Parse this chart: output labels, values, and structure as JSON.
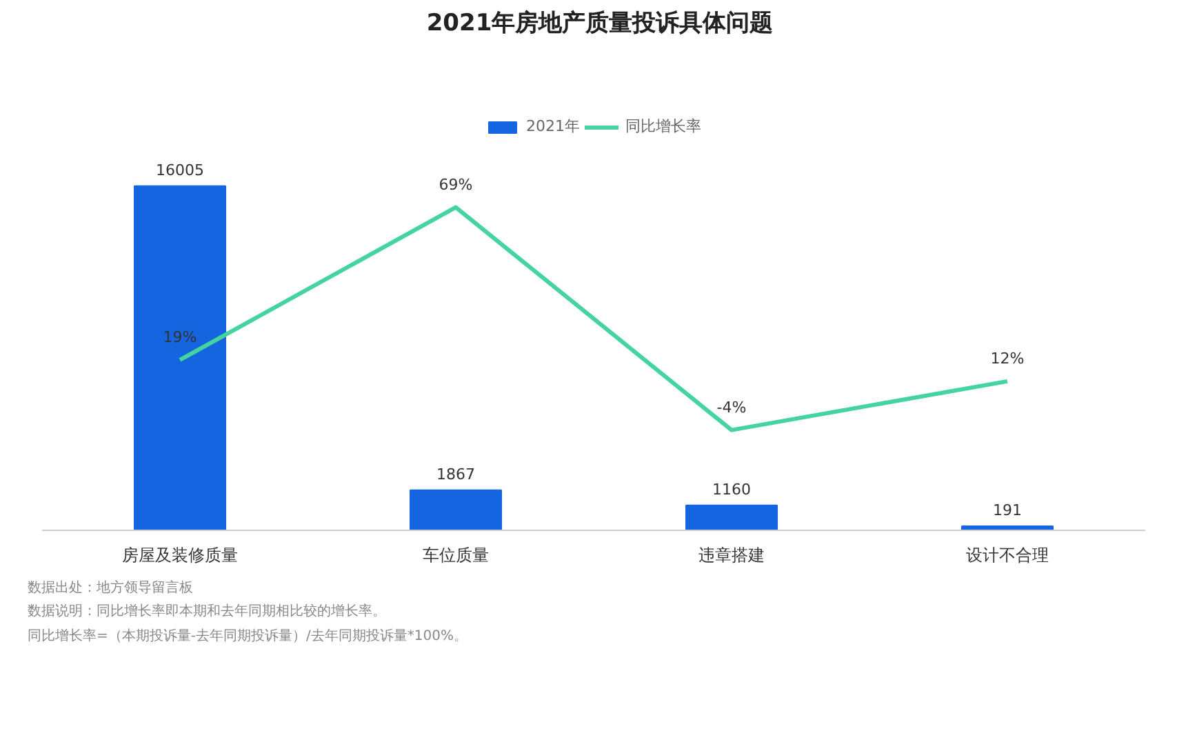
{
  "chart_data": {
    "type": "bar",
    "title": "2021年房地产质量投诉具体问题",
    "categories": [
      "房屋及装修质量",
      "车位质量",
      "违章搭建",
      "设计不合理"
    ],
    "series": [
      {
        "name": "2021年",
        "color": "#1565e0",
        "values": [
          16005,
          1867,
          1160,
          191
        ],
        "value_labels": [
          "16005",
          "1867",
          "1160",
          "191"
        ]
      },
      {
        "name": "同比增长率",
        "type": "line",
        "axis": "y2",
        "color": "#45d3a0",
        "values": [
          19,
          69,
          -4,
          12
        ],
        "value_labels": [
          "19%",
          "69%",
          "-4%",
          "12%"
        ]
      }
    ],
    "legend": "top",
    "grid": false,
    "marker": "none",
    "line_style": "solid",
    "annotations": [
      "数据出处：地方领导留言板",
      "数据说明：同比增长率即本期和去年同期相比较的增长率。",
      "同比增长率=（本期投诉量-去年同期投诉量）/去年同期投诉量*100%。"
    ]
  }
}
